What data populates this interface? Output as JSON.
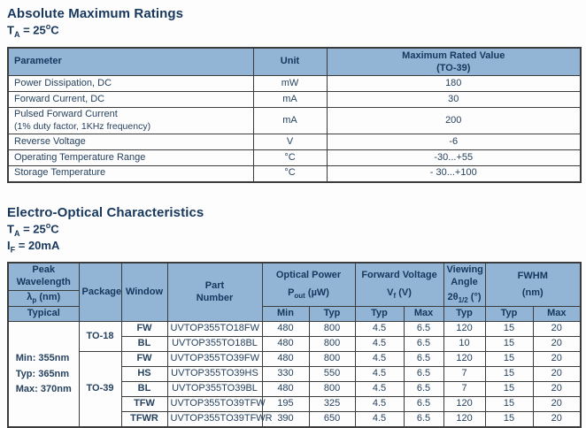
{
  "colors": {
    "header_bg": "#92b5d6",
    "border": "#3c3c3c",
    "text": "#17375d",
    "data_text": "#27425f"
  },
  "section1": {
    "title": "Absolute Maximum Ratings",
    "condition": [
      {
        "t": "T"
      },
      {
        "t": "A",
        "s": "sub"
      },
      {
        "t": " = 25"
      },
      {
        "t": "o",
        "s": "sup"
      },
      {
        "t": "C"
      }
    ],
    "table": {
      "headers": {
        "parameter": "Parameter",
        "unit": "Unit",
        "value_line1": "Maximum Rated Value",
        "value_line2": "(TO-39)"
      },
      "rows": [
        {
          "parameter": "Power Dissipation, DC",
          "unit": "mW",
          "value": "180"
        },
        {
          "parameter": "Forward Current, DC",
          "unit": "mA",
          "value": "30"
        },
        {
          "parameter": "Pulsed Forward Current",
          "note": "(1% duty factor, 1KHz frequency)",
          "unit": "mA",
          "value": "200"
        },
        {
          "parameter": "Reverse Voltage",
          "unit": "V",
          "value": "-6"
        },
        {
          "parameter": "Operating Temperature Range",
          "unit": "°C",
          "value": "-30...+55"
        },
        {
          "parameter": "Storage Temperature",
          "unit": "°C",
          "value": "- 30...+100"
        }
      ]
    }
  },
  "section2": {
    "title": "Electro-Optical Characteristics",
    "condition1": [
      {
        "t": "T"
      },
      {
        "t": "A",
        "s": "sub"
      },
      {
        "t": " = 25"
      },
      {
        "t": "o",
        "s": "sup"
      },
      {
        "t": "C"
      }
    ],
    "condition2": [
      {
        "t": "I"
      },
      {
        "t": "F",
        "s": "sub"
      },
      {
        "t": " = 20mA"
      }
    ],
    "table": {
      "headers": {
        "peak_line1": "Peak",
        "peak_line2": "Wavelength",
        "lambda": [
          {
            "t": "λ"
          },
          {
            "t": "p",
            "s": "sub"
          },
          {
            "t": " (nm)"
          }
        ],
        "typical": "Typical",
        "package": "Package",
        "window": "Window",
        "part_line1": "Part",
        "part_line2": "Number",
        "optical_power": "Optical Power",
        "optical_power_sym": [
          {
            "t": "P"
          },
          {
            "t": "out",
            "s": "sub"
          },
          {
            "t": " (µW)"
          }
        ],
        "forward_voltage": "Forward Voltage",
        "forward_voltage_sym": [
          {
            "t": "V"
          },
          {
            "t": "f",
            "s": "sub"
          },
          {
            "t": " (V)"
          }
        ],
        "viewing_angle": "Viewing Angle",
        "viewing_angle_sym": [
          {
            "t": "2θ"
          },
          {
            "t": "1/2",
            "s": "sub"
          },
          {
            "t": " (°)"
          }
        ],
        "fwhm": "FWHM",
        "fwhm_unit": "(nm)",
        "sub": [
          "Min",
          "Typ",
          "Typ",
          "Max",
          "Typ",
          "Typ",
          "Max"
        ]
      },
      "wavelength": [
        "Min: 355nm",
        "Typ: 365nm",
        "Max: 370nm"
      ],
      "packages": [
        {
          "name": "TO-18"
        },
        {
          "name": "TO-39"
        }
      ],
      "rows": [
        {
          "window": "FW",
          "part": "UVTOP355TO18FW",
          "min": "480",
          "typ": "800",
          "vf_typ": "4.5",
          "vf_max": "6.5",
          "angle": "120",
          "fwhm_typ": "15",
          "fwhm_max": "20"
        },
        {
          "window": "BL",
          "part": "UVTOP355TO18BL",
          "min": "480",
          "typ": "800",
          "vf_typ": "4.5",
          "vf_max": "6.5",
          "angle": "10",
          "fwhm_typ": "15",
          "fwhm_max": "20"
        },
        {
          "window": "FW",
          "part": "UVTOP355TO39FW",
          "min": "480",
          "typ": "800",
          "vf_typ": "4.5",
          "vf_max": "6.5",
          "angle": "120",
          "fwhm_typ": "15",
          "fwhm_max": "20"
        },
        {
          "window": "HS",
          "part": "UVTOP355TO39HS",
          "min": "330",
          "typ": "550",
          "vf_typ": "4.5",
          "vf_max": "6.5",
          "angle": "7",
          "fwhm_typ": "15",
          "fwhm_max": "20"
        },
        {
          "window": "BL",
          "part": "UVTOP355TO39BL",
          "min": "480",
          "typ": "800",
          "vf_typ": "4.5",
          "vf_max": "6.5",
          "angle": "7",
          "fwhm_typ": "15",
          "fwhm_max": "20"
        },
        {
          "window": "TFW",
          "part": "UVTOP355TO39TFW",
          "min": "195",
          "typ": "325",
          "vf_typ": "4.5",
          "vf_max": "6.5",
          "angle": "120",
          "fwhm_typ": "15",
          "fwhm_max": "20"
        },
        {
          "window": "TFWR",
          "part": "UVTOP355TO39TFWR",
          "min": "390",
          "typ": "650",
          "vf_typ": "4.5",
          "vf_max": "6.5",
          "angle": "120",
          "fwhm_typ": "15",
          "fwhm_max": "20"
        }
      ]
    }
  }
}
